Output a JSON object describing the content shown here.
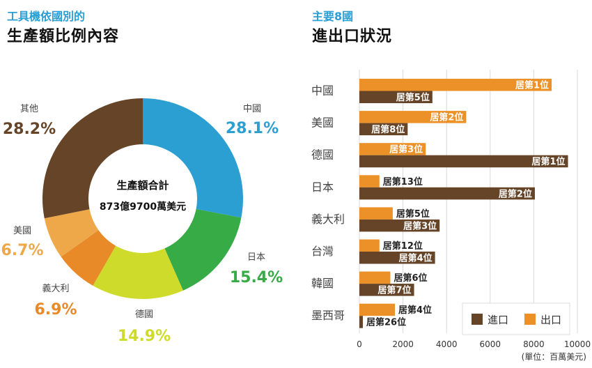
{
  "left": {
    "subtitle": "工具機依國別的",
    "title": "生產額比例內容"
  },
  "right": {
    "subtitle": "主要8國",
    "title": "進出口狀況"
  },
  "chart_data": [
    {
      "type": "pie",
      "title": "工具機依國別的生產額比例內容",
      "center_title": "生產額合計",
      "center_value": "873億9700萬美元",
      "slices": [
        {
          "label": "中國",
          "value": 28.1,
          "display": "28.1%",
          "color": "#2c9fd2"
        },
        {
          "label": "日本",
          "value": 15.4,
          "display": "15.4%",
          "color": "#36ab46"
        },
        {
          "label": "德國",
          "value": 14.9,
          "display": "14.9%",
          "color": "#cfdb2b"
        },
        {
          "label": "義大利",
          "value": 6.9,
          "display": "6.9%",
          "color": "#e88a28"
        },
        {
          "label": "美國",
          "value": 6.7,
          "display": "6.7%",
          "color": "#eea84a"
        },
        {
          "label": "其他",
          "value": 28.2,
          "display": "28.2%",
          "color": "#654427"
        }
      ]
    },
    {
      "type": "bar",
      "orientation": "horizontal",
      "title": "主要8國進出口狀況",
      "unit": "(單位：百萬美元)",
      "xlim": [
        0,
        10000
      ],
      "xticks": [
        "0",
        "2000",
        "4000",
        "6000",
        "8000",
        "10000"
      ],
      "grid": true,
      "legend": {
        "placement": "bottom-right",
        "entries": [
          {
            "name": "進口",
            "color": "#654427"
          },
          {
            "name": "出口",
            "color": "#ec9127"
          }
        ]
      },
      "categories": [
        "中國",
        "美國",
        "德國",
        "日本",
        "義大利",
        "台灣",
        "韓國",
        "墨西哥"
      ],
      "series": [
        {
          "name": "出口",
          "color": "#ec9127",
          "values": [
            8820,
            4900,
            3040,
            920,
            1530,
            920,
            1420,
            1630
          ],
          "labels": [
            "居第1位",
            "居第2位",
            "居第3位",
            "居第13位",
            "居第5位",
            "居第12位",
            "居第6位",
            "居第4位"
          ]
        },
        {
          "name": "進口",
          "color": "#654427",
          "values": [
            3350,
            2215,
            9570,
            8050,
            3680,
            3470,
            2510,
            160
          ],
          "labels": [
            "居第5位",
            "居第8位",
            "居第1位",
            "居第2位",
            "居第3位",
            "居第4位",
            "居第7位",
            "居第26位"
          ]
        }
      ]
    }
  ]
}
